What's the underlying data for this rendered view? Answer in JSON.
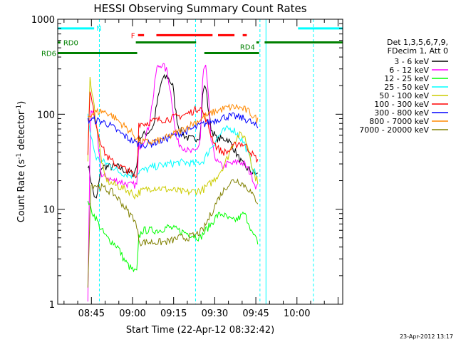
{
  "chart_data": {
    "type": "line",
    "title": "HESSI Observing Summary Count Rates",
    "xlabel": "Start Time (22-Apr-12 08:32:42)",
    "ylabel_main": "Count Rate (s",
    "ylabel_sup1": "-1",
    "ylabel_mid": " detector",
    "ylabel_sup2": "-1",
    "ylabel_end": ")",
    "yscale": "log",
    "ylim": [
      1,
      1000
    ],
    "xlim_minutes": [
      0,
      104
    ],
    "y_ticks": [
      {
        "value": 1,
        "label": "1"
      },
      {
        "value": 10,
        "label": "10"
      },
      {
        "value": 100,
        "label": "100"
      },
      {
        "value": 1000,
        "label": "1000"
      }
    ],
    "x_ticks": [
      {
        "t": 12.3,
        "label": "08:45"
      },
      {
        "t": 27.3,
        "label": "09:00"
      },
      {
        "t": 42.3,
        "label": "09:15"
      },
      {
        "t": 57.3,
        "label": "09:30"
      },
      {
        "t": 72.3,
        "label": "09:45"
      },
      {
        "t": 87.3,
        "label": "10:00"
      }
    ],
    "legend_header": [
      "Det 1,3,5,6,7,9,",
      "FDecim 1, Att 0"
    ],
    "legend_placement": "right",
    "timestamp": "23-Apr-2012 13:17",
    "colors": {
      "cyan": "#00ffff",
      "green": "#008000",
      "red": "#ff0000"
    },
    "saa_markers": [
      {
        "label": "N",
        "color": "#00ffff",
        "level": 800,
        "segments": [
          [
            0,
            13.3
          ],
          [
            87.7,
            104
          ]
        ]
      },
      {
        "label": "F",
        "color": "#ff0000",
        "level": 680,
        "segments": [
          [
            29.3,
            31.5
          ],
          [
            36,
            56.5
          ],
          [
            58.5,
            64.5
          ],
          [
            67.5,
            69
          ]
        ]
      },
      {
        "label": "RD0",
        "color": "#008000",
        "level": 570,
        "segments": [
          [
            0,
            1
          ]
        ]
      },
      {
        "label": "RD4",
        "color": "#008000",
        "level": 570,
        "segments": [
          [
            28.5,
            50.5
          ],
          [
            72.5,
            73.5
          ],
          [
            75.5,
            104
          ]
        ]
      },
      {
        "label": "RD6",
        "color": "#008000",
        "level": 440,
        "segments": [
          [
            0,
            29
          ],
          [
            53.5,
            73.5
          ]
        ]
      }
    ],
    "vertical_markers": [
      {
        "t": 0,
        "color": "#00ffff",
        "style": "solid"
      },
      {
        "t": 15.2,
        "color": "#00ffff",
        "style": "dashed"
      },
      {
        "t": 50.3,
        "color": "#00ffff",
        "style": "dashed"
      },
      {
        "t": 73.8,
        "color": "#00ffff",
        "style": "dashed"
      },
      {
        "t": 76,
        "color": "#00ffff",
        "style": "solid"
      },
      {
        "t": 93.3,
        "color": "#00ffff",
        "style": "dashed"
      }
    ],
    "series": [
      {
        "name": "3 - 6 keV",
        "color": "#000000",
        "t": [
          11,
          13,
          14,
          16,
          18,
          20,
          22,
          24,
          26,
          28,
          29,
          29.5,
          31,
          33,
          35,
          36,
          38,
          40,
          42,
          43,
          44,
          46,
          48,
          50,
          52,
          53,
          54,
          55,
          56,
          58,
          60,
          62,
          64,
          66,
          68,
          70,
          71,
          72,
          73
        ],
        "values": [
          30,
          15,
          12,
          28,
          28,
          28,
          28,
          26,
          24,
          24,
          30,
          55,
          60,
          65,
          75,
          120,
          230,
          250,
          200,
          110,
          75,
          60,
          55,
          55,
          60,
          180,
          200,
          110,
          70,
          55,
          55,
          55,
          45,
          35,
          28,
          26,
          24,
          24,
          23
        ]
      },
      {
        "name": "6 - 12 keV",
        "color": "#ff00ff",
        "t": [
          11,
          12,
          14,
          16,
          18,
          20,
          22,
          24,
          26,
          28,
          29,
          29.5,
          31,
          33,
          35,
          36,
          38,
          40,
          42,
          43,
          44,
          46,
          48,
          50,
          52,
          53,
          54,
          55,
          56,
          58,
          60,
          62,
          64,
          66,
          68,
          70,
          71,
          72,
          73
        ],
        "values": [
          1.1,
          120,
          80,
          22,
          22,
          20,
          20,
          19,
          18,
          18,
          18,
          45,
          50,
          70,
          160,
          300,
          340,
          280,
          120,
          60,
          50,
          45,
          40,
          40,
          50,
          280,
          320,
          150,
          50,
          32,
          28,
          30,
          30,
          32,
          30,
          25,
          22,
          18,
          17
        ]
      },
      {
        "name": "12 - 25 keV",
        "color": "#00ff00",
        "t": [
          11,
          12,
          14,
          16,
          18,
          20,
          22,
          24,
          26,
          28,
          29,
          29.5,
          31,
          34,
          37,
          40,
          44,
          48,
          52,
          54,
          56,
          58,
          60,
          62,
          64,
          66,
          68,
          70,
          71,
          72,
          73
        ],
        "values": [
          13,
          10,
          8,
          6,
          5,
          4.5,
          4,
          3,
          2.5,
          2.2,
          2.2,
          5,
          6,
          6,
          6,
          6.5,
          6,
          5.5,
          5,
          6,
          7,
          8.5,
          9,
          8,
          7.5,
          8,
          9,
          7,
          5.5,
          5,
          4.5
        ]
      },
      {
        "name": "25 - 50 keV",
        "color": "#00ffff",
        "t": [
          11,
          12,
          14,
          16,
          18,
          20,
          22,
          24,
          26,
          28,
          29,
          29.5,
          32,
          35,
          38,
          41,
          44,
          47,
          50,
          53,
          56,
          58,
          60,
          62,
          64,
          66,
          68,
          70,
          71,
          72,
          73
        ],
        "values": [
          100,
          60,
          35,
          32,
          30,
          28,
          25,
          24,
          23,
          23,
          23,
          25,
          26,
          28,
          29,
          30,
          31,
          31,
          30,
          32,
          45,
          55,
          65,
          70,
          70,
          60,
          50,
          35,
          28,
          24,
          22
        ]
      },
      {
        "name": "50 - 100 keV",
        "color": "#cccc00",
        "t": [
          11,
          11.8,
          13,
          15,
          17,
          19,
          21,
          23,
          25,
          27,
          28,
          29,
          29.5,
          32,
          35,
          38,
          41,
          44,
          47,
          50,
          53,
          56,
          58,
          60,
          62,
          64,
          66,
          68,
          70,
          71,
          72,
          73
        ],
        "values": [
          30,
          250,
          140,
          50,
          22,
          19,
          18,
          17,
          16,
          15,
          14,
          14,
          15,
          16,
          17,
          16.5,
          16,
          15.5,
          15,
          15.5,
          16,
          19,
          22,
          27,
          35,
          50,
          60,
          60,
          40,
          28,
          22,
          20
        ]
      },
      {
        "name": "100 - 300 keV",
        "color": "#ff0000",
        "t": [
          11,
          11.8,
          13,
          15,
          17,
          19,
          21,
          23,
          25,
          27,
          28,
          29,
          29.5,
          32,
          35,
          38,
          41,
          44,
          47,
          50,
          52,
          54,
          56,
          58,
          60,
          62,
          64,
          66,
          68,
          70,
          71,
          72,
          73
        ],
        "values": [
          40,
          175,
          110,
          60,
          40,
          33,
          30,
          28,
          26,
          24,
          22,
          22,
          80,
          80,
          85,
          88,
          90,
          95,
          100,
          110,
          120,
          90,
          60,
          45,
          40,
          40,
          45,
          50,
          48,
          42,
          38,
          35,
          33
        ]
      },
      {
        "name": "300 - 800 keV",
        "color": "#0000ff",
        "t": [
          11,
          12,
          14,
          16,
          18,
          20,
          22,
          24,
          26,
          28,
          29,
          30,
          32,
          34,
          36,
          38,
          40,
          42,
          44,
          46,
          48,
          50,
          52,
          54,
          56,
          58,
          60,
          62,
          64,
          66,
          68,
          70,
          71,
          72,
          73
        ],
        "values": [
          85,
          88,
          86,
          84,
          80,
          73,
          66,
          60,
          55,
          51,
          49,
          48,
          48,
          49,
          51,
          53,
          56,
          59,
          62,
          65,
          68,
          72,
          76,
          80,
          84,
          88,
          92,
          95,
          95,
          93,
          90,
          85,
          80,
          76,
          72
        ]
      },
      {
        "name": "800 - 7000 keV",
        "color": "#ff8800",
        "t": [
          11,
          12,
          14,
          16,
          18,
          20,
          22,
          24,
          26,
          28,
          29,
          30,
          32,
          34,
          36,
          38,
          40,
          42,
          44,
          46,
          48,
          50,
          52,
          54,
          56,
          58,
          60,
          62,
          64,
          66,
          68,
          70,
          71,
          72,
          73
        ],
        "values": [
          95,
          100,
          105,
          108,
          104,
          96,
          86,
          76,
          68,
          60,
          55,
          52,
          51,
          51,
          52,
          54,
          57,
          61,
          65,
          70,
          76,
          82,
          88,
          95,
          102,
          108,
          113,
          117,
          119,
          118,
          113,
          105,
          98,
          92,
          86
        ]
      },
      {
        "name": "7000 - 20000 keV",
        "color": "#808000",
        "t": [
          11,
          12,
          14,
          16,
          18,
          20,
          22,
          24,
          26,
          28,
          29,
          30,
          32,
          35,
          38,
          41,
          44,
          47,
          50,
          53,
          56,
          58,
          60,
          62,
          64,
          66,
          68,
          70,
          71,
          72,
          73
        ],
        "values": [
          1.5,
          18,
          18,
          17,
          16,
          15,
          13,
          11,
          9,
          8,
          6,
          4.5,
          4.5,
          4.5,
          4.5,
          4.6,
          5,
          5,
          5.3,
          6,
          9,
          12,
          15,
          18,
          20,
          20,
          18,
          16,
          14,
          13,
          12
        ]
      }
    ]
  }
}
